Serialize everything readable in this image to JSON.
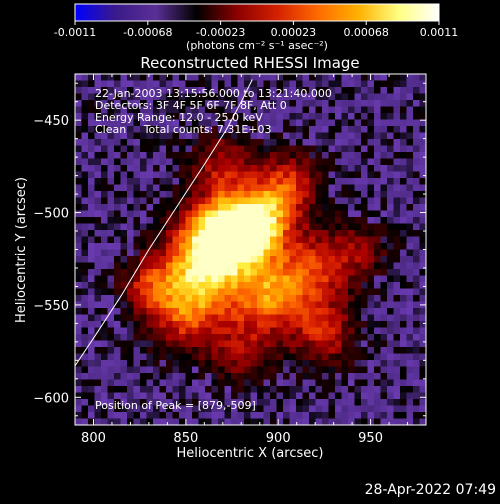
{
  "chart_data": {
    "type": "heatmap",
    "title": "Reconstructed RHESSI Image",
    "xlabel": "Heliocentric X (arcsec)",
    "ylabel": "Heliocentric Y (arcsec)",
    "xlim": [
      790,
      980
    ],
    "ylim": [
      -615,
      -425
    ],
    "xticks": [
      800,
      850,
      900,
      950
    ],
    "yticks": [
      -450,
      -500,
      -550,
      -600
    ],
    "colorbar": {
      "range": [
        -0.0011,
        0.0011
      ],
      "ticks": [
        "-0.0011",
        "-0.00068",
        "-0.00023",
        "0.00023",
        "0.00068",
        "0.0011"
      ],
      "unit": "(photons cm⁻² s⁻¹ asec⁻²)",
      "colors": [
        "#0000ff",
        "#3a1a8a",
        "#5a2f96",
        "#000000",
        "#8b0000",
        "#d42000",
        "#ff6a00",
        "#ffb000",
        "#ffff80",
        "#ffffff"
      ]
    },
    "info_lines": [
      "22-Jan-2003 13:15:56.000 to 13:21:40.000",
      "Detectors: 3F 4F 5F 6F 7F 8F, Att 0",
      "Energy Range: 12.0 - 25.0 keV",
      "Clean     Total counts: 7.31E+03"
    ],
    "peak_label": "Position of Peak = [879,-509]",
    "peak": [
      879,
      -509
    ],
    "blobs": [
      {
        "x": 872,
        "y": -512,
        "sigma": 14,
        "amp": 1.0
      },
      {
        "x": 890,
        "y": -505,
        "sigma": 12,
        "amp": 0.7
      },
      {
        "x": 858,
        "y": -530,
        "sigma": 16,
        "amp": 0.65
      },
      {
        "x": 895,
        "y": -545,
        "sigma": 14,
        "amp": 0.6
      },
      {
        "x": 850,
        "y": -555,
        "sigma": 14,
        "amp": 0.45
      },
      {
        "x": 920,
        "y": -530,
        "sigma": 14,
        "amp": 0.45
      },
      {
        "x": 925,
        "y": -565,
        "sigma": 12,
        "amp": 0.4
      },
      {
        "x": 905,
        "y": -485,
        "sigma": 12,
        "amp": 0.45
      },
      {
        "x": 870,
        "y": -475,
        "sigma": 12,
        "amp": 0.35
      },
      {
        "x": 830,
        "y": -540,
        "sigma": 10,
        "amp": 0.35
      },
      {
        "x": 945,
        "y": -520,
        "sigma": 10,
        "amp": 0.25
      },
      {
        "x": 880,
        "y": -575,
        "sigma": 12,
        "amp": 0.3
      }
    ],
    "limb_curve": [
      [
        790,
        -583
      ],
      [
        800,
        -568
      ],
      [
        815,
        -545
      ],
      [
        830,
        -520
      ],
      [
        845,
        -497
      ],
      [
        860,
        -474
      ],
      [
        872,
        -455
      ],
      [
        880,
        -440
      ],
      [
        886,
        -428
      ]
    ]
  },
  "footer": {
    "date": "28-Apr-2022 07:49"
  }
}
